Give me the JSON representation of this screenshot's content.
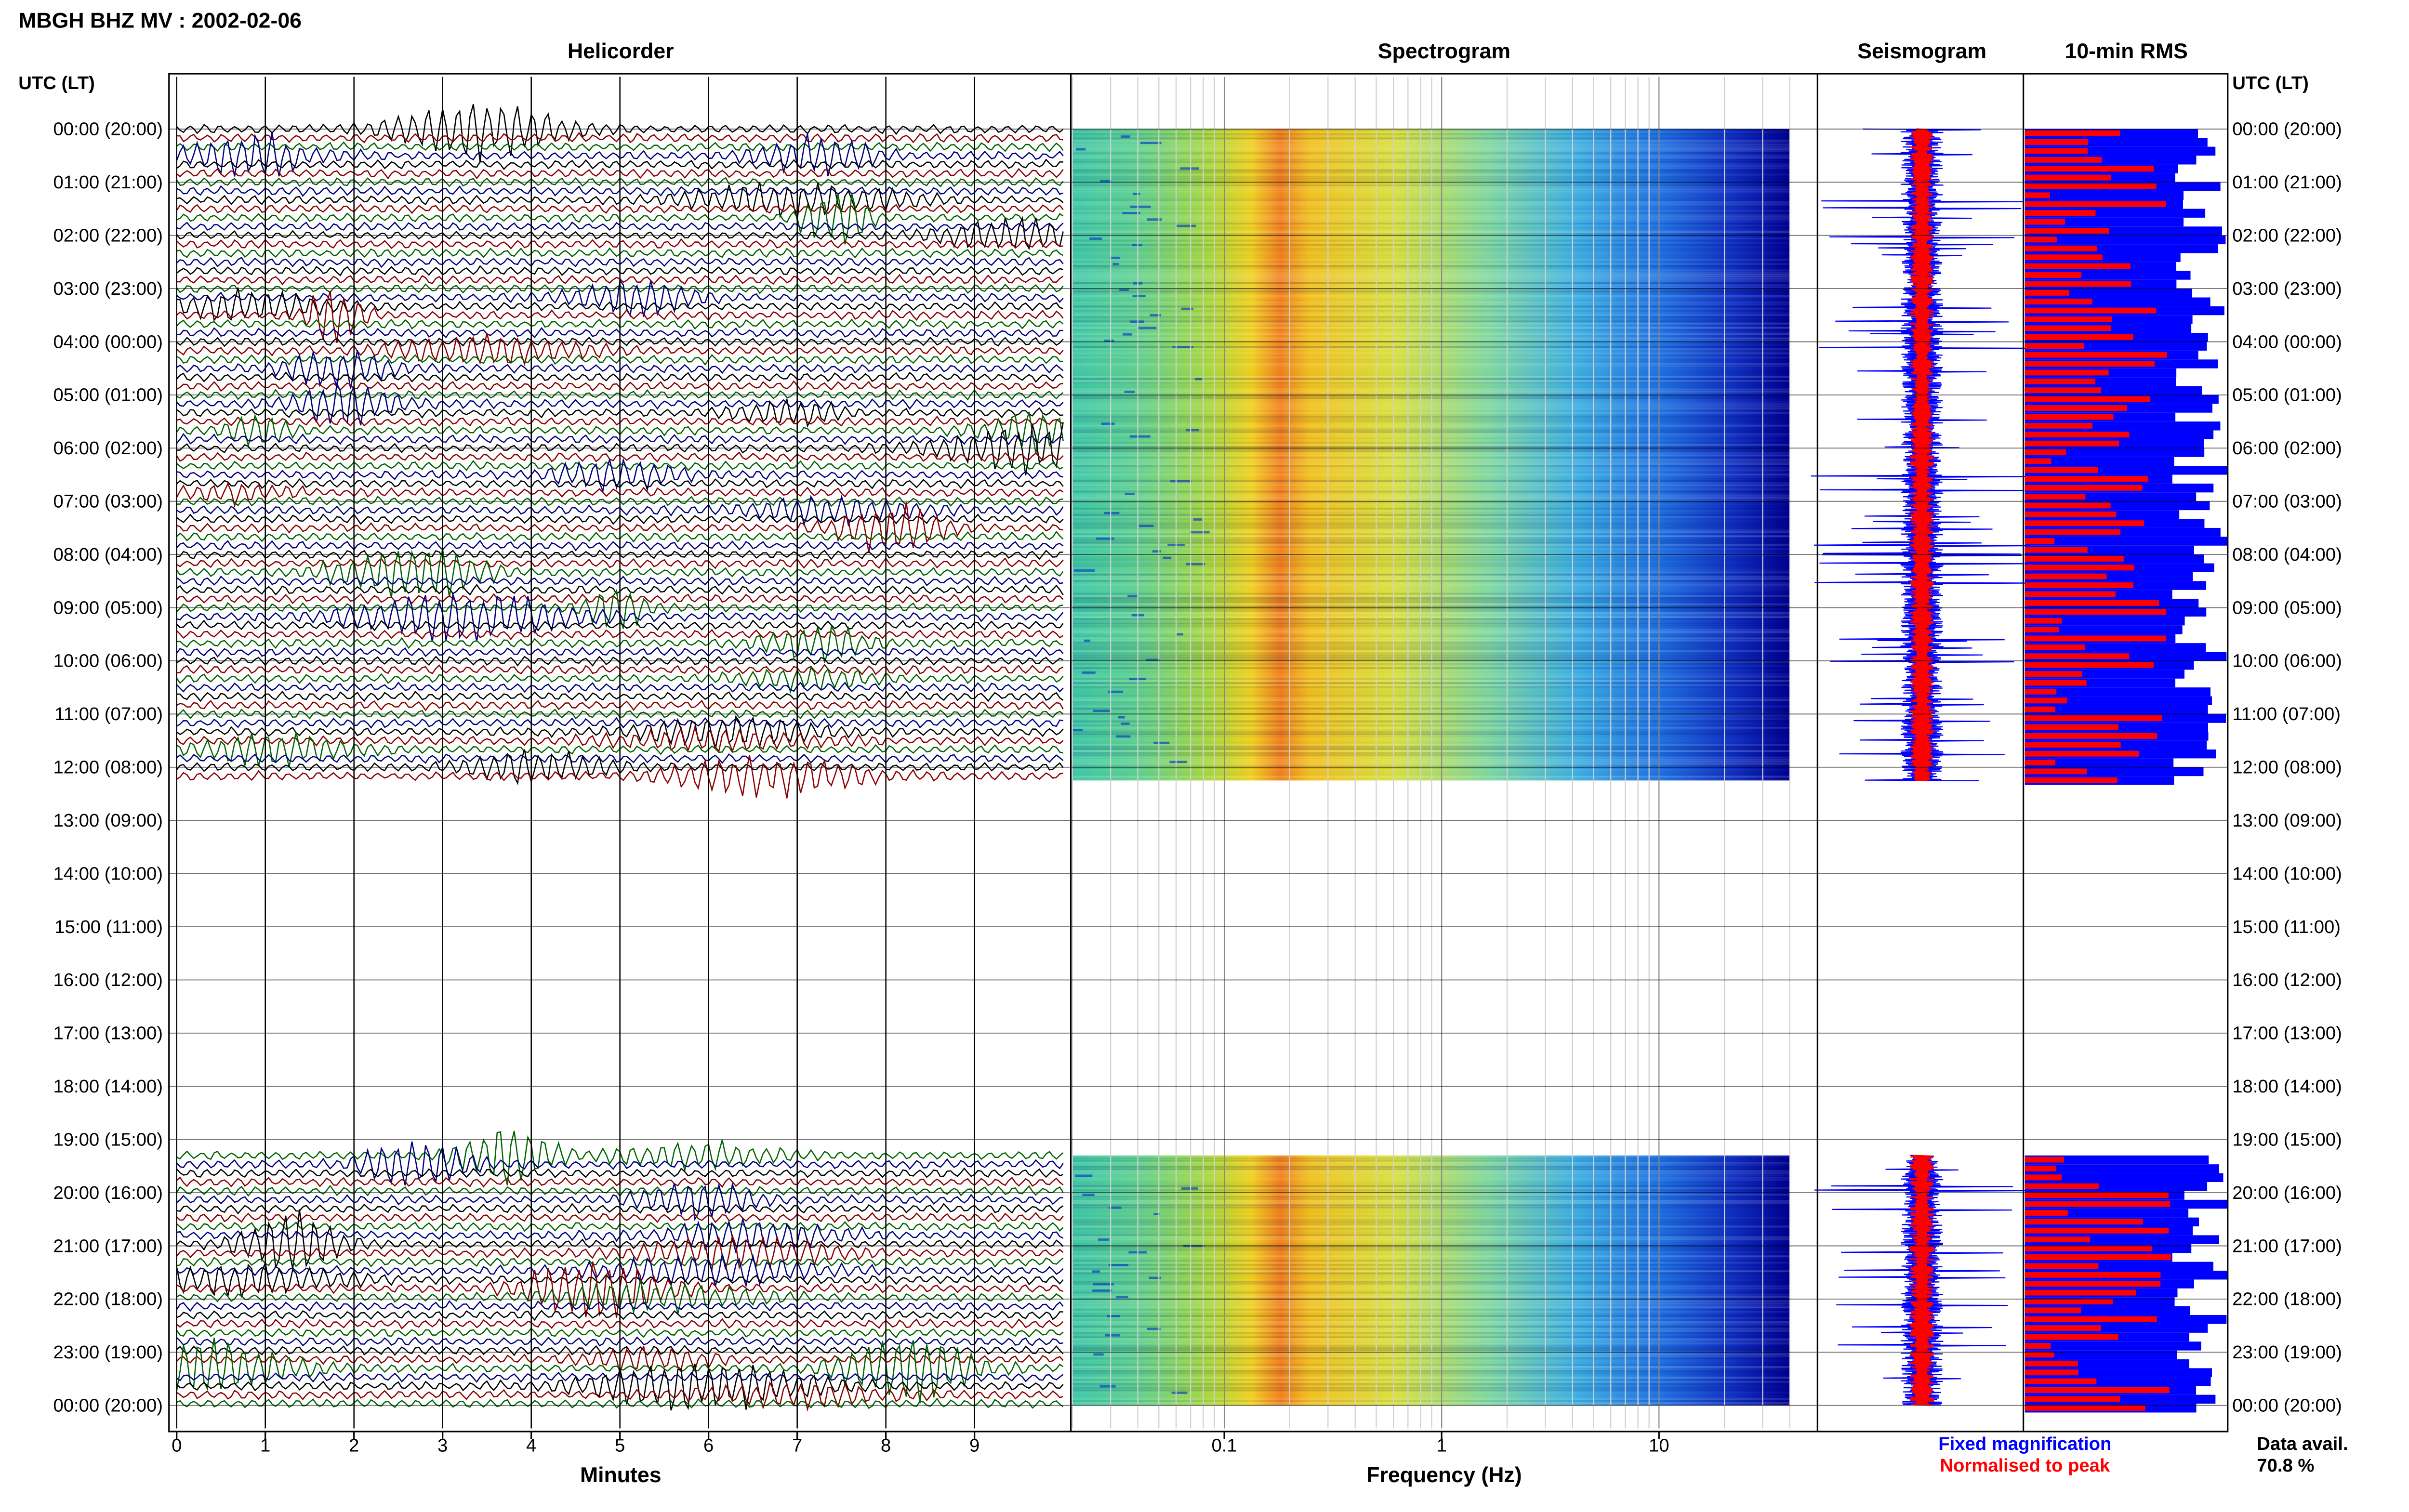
{
  "header": {
    "title": "MBGH BHZ MV : 2002-02-06"
  },
  "panels": {
    "helicorder_title": "Helicorder",
    "spectrogram_title": "Spectrogram",
    "seismogram_title": "Seismogram",
    "rms_title": "10-min RMS"
  },
  "axes": {
    "time_label_left": "UTC (LT)",
    "time_label_right": "UTC (LT)",
    "helicorder_xlabel": "Minutes",
    "spectrogram_xlabel": "Frequency (Hz)",
    "helicorder_ticks": [
      "0",
      "1",
      "2",
      "3",
      "4",
      "5",
      "6",
      "7",
      "8",
      "9"
    ],
    "spectrogram_ticks": [
      "0.1",
      "1",
      "10"
    ],
    "time_ticks": [
      "00:00 (20:00)",
      "01:00 (21:00)",
      "02:00 (22:00)",
      "03:00 (23:00)",
      "04:00 (00:00)",
      "05:00 (01:00)",
      "06:00 (02:00)",
      "07:00 (03:00)",
      "08:00 (04:00)",
      "09:00 (05:00)",
      "10:00 (06:00)",
      "11:00 (07:00)",
      "12:00 (08:00)",
      "13:00 (09:00)",
      "14:00 (10:00)",
      "15:00 (11:00)",
      "16:00 (12:00)",
      "17:00 (13:00)",
      "18:00 (14:00)",
      "19:00 (15:00)",
      "20:00 (16:00)",
      "21:00 (17:00)",
      "22:00 (18:00)",
      "23:00 (19:00)",
      "00:00 (20:00)"
    ]
  },
  "legend": {
    "fixed_label": "Fixed magnification",
    "normalised_label": "Normalised to peak",
    "fixed_color": "#0000ff",
    "normalised_color": "#ff0000"
  },
  "availability": {
    "label": "Data avail.",
    "value": "70.8 %"
  },
  "chart_data": {
    "type": "heatmap",
    "station": "MBGH",
    "channel": "BHZ",
    "network": "MV",
    "date": "2002-02-06",
    "time_range_utc_hours": [
      0,
      24
    ],
    "data_segments_utc_hours": [
      [
        0,
        12.25
      ],
      [
        19.3,
        24
      ]
    ],
    "data_availability_percent": 70.8,
    "helicorder": {
      "xlim_minutes": [
        0,
        10
      ],
      "trace_colors": [
        "#000000",
        "#8b0000",
        "#006400",
        "#000080"
      ]
    },
    "spectrogram": {
      "x_scale": "log",
      "xlim_hz": [
        0.02,
        40
      ],
      "colormap": "jet",
      "dominant_band_hz": [
        0.18,
        0.3
      ]
    },
    "rms": {
      "interval_minutes": 10,
      "series": [
        {
          "name": "Fixed magnification",
          "color": "#0000ff"
        },
        {
          "name": "Normalised to peak",
          "color": "#ff0000"
        }
      ]
    }
  }
}
